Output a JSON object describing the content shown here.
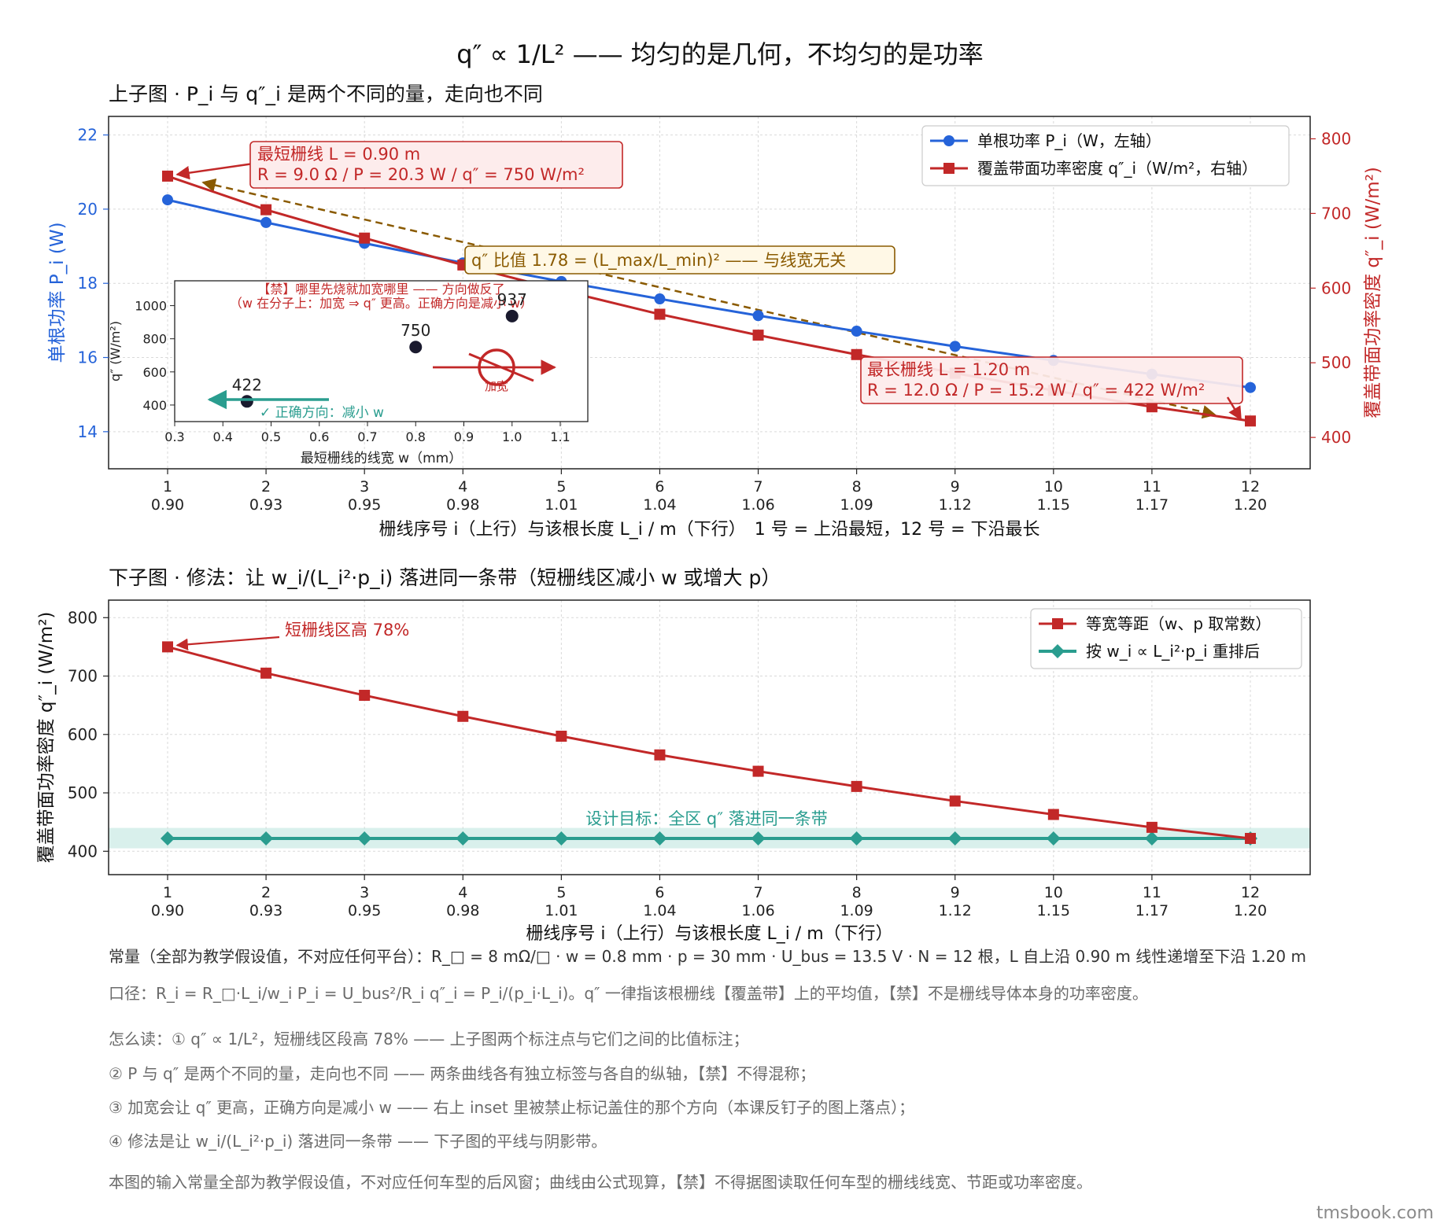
{
  "title": "q″  ∝ 1/L² —— 均匀的是几何，不均匀的是功率",
  "colors": {
    "blue": "#2563d9",
    "red": "#c22828",
    "teal": "#2a9d8f",
    "olive": "#8a5a00",
    "dark": "#1a1a2e",
    "band": "#bfe6e0"
  },
  "chart_data": [
    {
      "type": "line",
      "subtitle": "上子图 · P_i 与 q″_i 是两个不同的量，走向也不同",
      "categories": [
        1,
        2,
        3,
        4,
        5,
        6,
        7,
        8,
        9,
        10,
        11,
        12
      ],
      "category_sub": [
        "0.90",
        "0.93",
        "0.95",
        "0.98",
        "1.01",
        "1.04",
        "1.06",
        "1.09",
        "1.12",
        "1.15",
        "1.17",
        "1.20"
      ],
      "xlabel": "栅线序号 i（上行）与该根长度 L_i / m（下行）　1 号 = 上沿最短，12 号 = 下沿最长",
      "ylabel": "单根功率 P_i (W)",
      "ylabel_right": "覆盖带面功率密度 q″_i (W/m²)",
      "ylim": [
        13.0,
        22.5
      ],
      "yticks": [
        14,
        16,
        18,
        20,
        22
      ],
      "ylim_right": [
        358,
        830
      ],
      "yticks_right": [
        400,
        500,
        600,
        700,
        800
      ],
      "legend_position": "top-right",
      "series": [
        {
          "name": "单根功率 P_i（W，左轴）",
          "axis": "left",
          "marker": "circle",
          "values": [
            20.25,
            19.64,
            19.08,
            18.55,
            18.05,
            17.58,
            17.13,
            16.71,
            16.3,
            15.92,
            15.55,
            15.19
          ]
        },
        {
          "name": "覆盖带面功率密度 q″_i（W/m²，右轴）",
          "axis": "right",
          "marker": "square",
          "values": [
            750,
            705,
            667,
            631,
            597,
            565,
            537,
            511,
            486,
            463,
            441,
            422
          ]
        }
      ],
      "annotations": {
        "short": {
          "line1": "最短栅线 L = 0.90 m",
          "line2": "R = 9.0 Ω / P = 20.3 W / q″  = 750 W/m²"
        },
        "long": {
          "line1": "最长栅线 L = 1.20 m",
          "line2": "R = 12.0 Ω / P = 15.2 W / q″  = 422 W/m²"
        },
        "ratio": "q″  比值 1.78 = (L_max/L_min)² —— 与线宽无关"
      },
      "inset": {
        "title1": "【禁】哪里先烧就加宽哪里 —— 方向做反了",
        "title2": "（w 在分子上：加宽 ⇒ q″  更高。正确方向是减小 w）",
        "xlabel": "最短栅线的线宽 w（mm）",
        "ylabel": "q″ (W/m²)",
        "xlim": [
          0.3,
          1.15
        ],
        "xticks": [
          "0.3",
          "0.4",
          "0.5",
          "0.6",
          "0.7",
          "0.8",
          "0.9",
          "1.0",
          "1.1"
        ],
        "ylim": [
          300,
          1150
        ],
        "yticks": [
          400,
          600,
          800,
          1000
        ],
        "points": [
          {
            "x": 0.45,
            "y": 422,
            "label": "422"
          },
          {
            "x": 0.8,
            "y": 750,
            "label": "750"
          },
          {
            "x": 1.0,
            "y": 937,
            "label": "937"
          }
        ],
        "forbidden_label": "加宽",
        "correct_label": "✓ 正确方向：减小 w"
      }
    },
    {
      "type": "line",
      "subtitle": "下子图 · 修法：让 w_i/(L_i²·p_i) 落进同一条带（短栅线区减小 w 或增大 p）",
      "categories": [
        1,
        2,
        3,
        4,
        5,
        6,
        7,
        8,
        9,
        10,
        11,
        12
      ],
      "category_sub": [
        "0.90",
        "0.93",
        "0.95",
        "0.98",
        "1.01",
        "1.04",
        "1.06",
        "1.09",
        "1.12",
        "1.15",
        "1.17",
        "1.20"
      ],
      "xlabel": "栅线序号 i（上行）与该根长度 L_i / m（下行）",
      "ylabel": "覆盖带面功率密度 q″_i (W/m²)",
      "ylim": [
        360,
        830
      ],
      "yticks": [
        400,
        500,
        600,
        700,
        800
      ],
      "legend_position": "top-right",
      "series": [
        {
          "name": "等宽等距（w、p 取常数）",
          "marker": "square",
          "values": [
            750,
            705,
            667,
            631,
            597,
            565,
            537,
            511,
            486,
            463,
            441,
            422
          ]
        },
        {
          "name": "按 w_i ∝ L_i²·p_i 重排后",
          "marker": "diamond",
          "values": [
            422,
            422,
            422,
            422,
            422,
            422,
            422,
            422,
            422,
            422,
            422,
            422
          ]
        }
      ],
      "band": [
        405,
        440
      ],
      "annotations": {
        "short": "短栅线区高 78%",
        "target": "设计目标：全区 q″  落进同一条带"
      }
    }
  ],
  "notes": {
    "constants": "常量（全部为教学假设值，不对应任何平台）：R_□ = 8 mΩ/□ · w = 0.8 mm · p = 30 mm · U_bus = 13.5 V · N = 12 根，L 自上沿 0.90 m 线性递增至下沿 1.20 m",
    "formula": "口径：R_i = R_□·L_i/w_i   P_i = U_bus²/R_i   q″_i = P_i/(p_i·L_i)。q″  一律指该根栅线【覆盖带】上的平均值，【禁】不是栅线导体本身的功率密度。",
    "read0": "怎么读：① q″  ∝ 1/L²，短栅线区段高 78% —— 上子图两个标注点与它们之间的比值标注；",
    "read2": "② P 与 q″  是两个不同的量，走向也不同 —— 两条曲线各有独立标签与各自的纵轴，【禁】不得混称；",
    "read3": "③ 加宽会让 q″  更高，正确方向是减小 w —— 右上 inset 里被禁止标记盖住的那个方向（本课反钉子的图上落点）；",
    "read4": "④ 修法是让 w_i/(L_i²·p_i) 落进同一条带 —— 下子图的平线与阴影带。",
    "disclaimer": "本图的输入常量全部为教学假设值，不对应任何车型的后风窗；曲线由公式现算，【禁】不得据图读取任何车型的栅线线宽、节距或功率密度。",
    "brand": "tmsbook.com"
  }
}
